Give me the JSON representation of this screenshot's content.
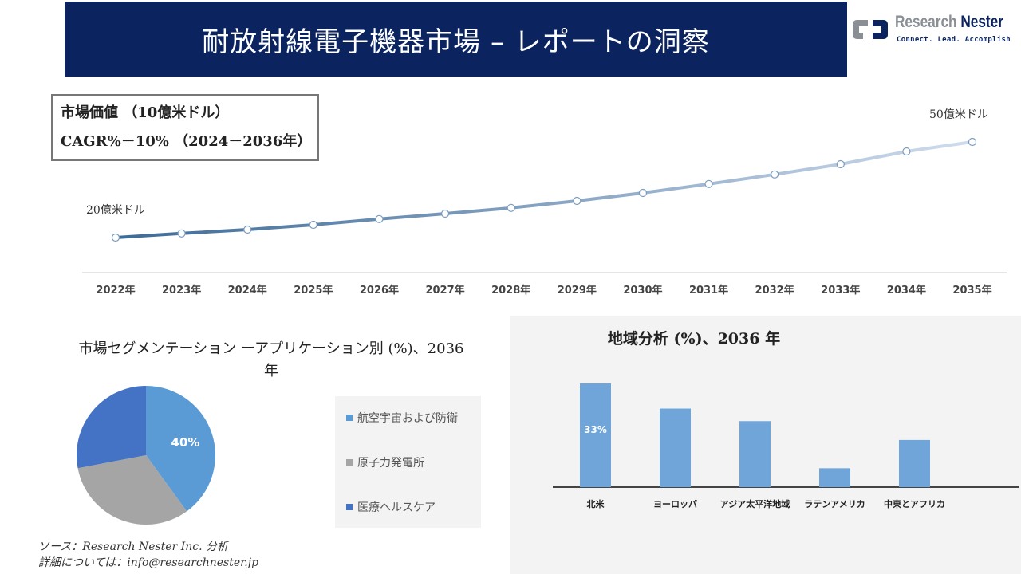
{
  "header": {
    "title": "耐放射線電子機器市場 – レポートの洞察"
  },
  "logo": {
    "name_a": "Research",
    "name_b": "Nester",
    "tagline": "Connect. Lead. Accomplish"
  },
  "kpi": {
    "line1": "市場価値 （10億米ドル）",
    "line2": "CAGR%－10% （2024－2036年）"
  },
  "chart_data": [
    {
      "type": "line",
      "categories": [
        "2022年",
        "2023年",
        "2024年",
        "2025年",
        "2026年",
        "2027年",
        "2028年",
        "2029年",
        "2030年",
        "2031年",
        "2032年",
        "2033年",
        "2034年",
        "2035年"
      ],
      "values": [
        20,
        21.3,
        22.5,
        24,
        25.8,
        27.5,
        29.3,
        31.5,
        34,
        36.8,
        39.8,
        43,
        47,
        50
      ],
      "start_label": "20億米ドル",
      "end_label": "50億米ドル",
      "color_start": "#3d6a96",
      "color_end": "#cfdced"
    },
    {
      "type": "pie",
      "title": "市場セグメンテーション ーアプリケーション別 (%)、2036年",
      "slices": [
        {
          "name": "航空宇宙および防衛",
          "value": 40,
          "label": "40%",
          "color": "#5b9bd5"
        },
        {
          "name": "原子力発電所",
          "value": 32,
          "color": "#a5a5a5"
        },
        {
          "name": "医療ヘルスケア",
          "value": 28,
          "color": "#4472c4"
        }
      ]
    },
    {
      "type": "bar",
      "title": "地域分析 (%)、2036 年",
      "categories": [
        "北米",
        "ヨーロッパ",
        "アジア太平洋地域",
        "ラテンアメリカ",
        "中東とアフリカ"
      ],
      "values": [
        33,
        25,
        21,
        6,
        15
      ],
      "data_labels": [
        "33%"
      ],
      "color": "#6fa5d8"
    }
  ],
  "source": {
    "line1": "ソース：Research Nester Inc. 分析",
    "line2": "詳細については：info@researchnester.jp"
  }
}
